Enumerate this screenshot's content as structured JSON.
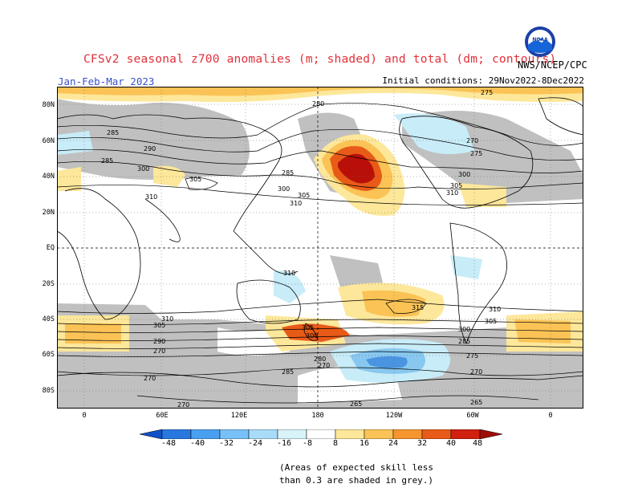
{
  "header": {
    "title": "CFSv2 seasonal z700 anomalies (m; shaded) and total (dm; contours)",
    "season": "Jan-Feb-Mar 2023",
    "initial_conditions": "Initial conditions: 29Nov2022-8Dec2022",
    "organization": "NWS/NCEP/CPC",
    "logo_text": "NOAA"
  },
  "map": {
    "lat_labels": [
      "80N",
      "60N",
      "40N",
      "20N",
      "EQ",
      "20S",
      "40S",
      "60S",
      "80S"
    ],
    "lon_labels": [
      "0",
      "60E",
      "120E",
      "180",
      "120W",
      "60W",
      "0"
    ],
    "contour_labels": [
      "275",
      "280",
      "285",
      "290",
      "300",
      "305",
      "310",
      "315",
      "270",
      "265"
    ]
  },
  "colorbar": {
    "labels": [
      "-48",
      "-40",
      "-32",
      "-24",
      "-16",
      "-8",
      "8",
      "16",
      "24",
      "32",
      "40",
      "48"
    ],
    "colors": [
      "#1050c8",
      "#2878e0",
      "#4aa0f0",
      "#78c0f8",
      "#a8dcf8",
      "#d8f4fa",
      "#ffffff",
      "#fde79a",
      "#fbc355",
      "#f59530",
      "#e85a18",
      "#d02010",
      "#a00c08"
    ]
  },
  "footnote": {
    "line1": "(Areas of expected skill less",
    "line2": "than 0.3 are shaded in grey.)"
  }
}
